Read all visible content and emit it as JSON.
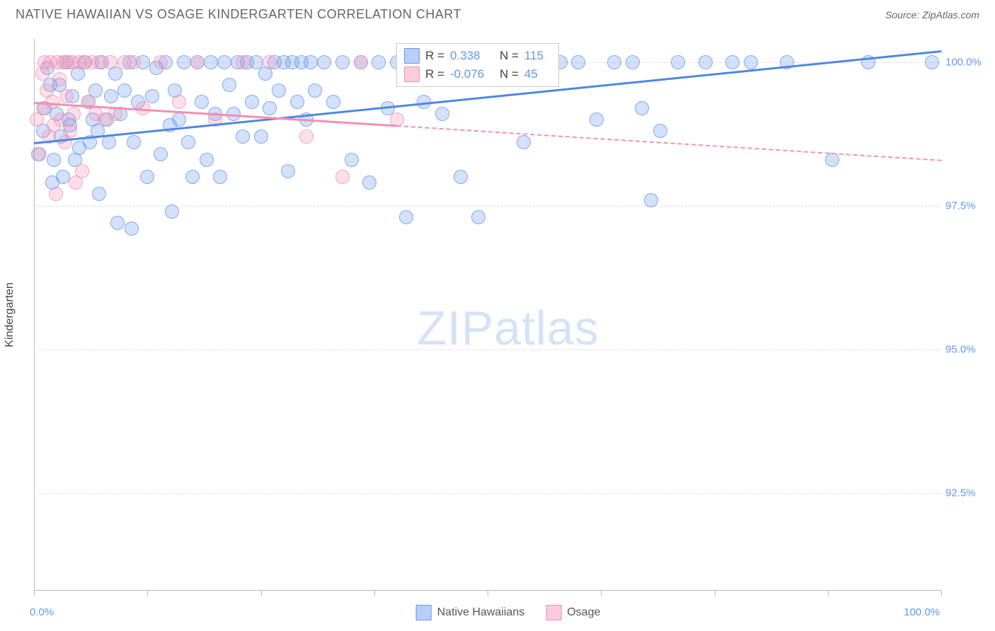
{
  "title": "NATIVE HAWAIIAN VS OSAGE KINDERGARTEN CORRELATION CHART",
  "source": "Source: ZipAtlas.com",
  "watermark": {
    "zip": "ZIP",
    "atlas": "atlas"
  },
  "chart": {
    "type": "scatter",
    "background_color": "#ffffff",
    "grid_color": "#dddddd",
    "axis_color": "#bbbbbb",
    "value_color": "#6495ed",
    "text_color": "#444444",
    "xlim": [
      0,
      100
    ],
    "ylim": [
      90.8,
      100.4
    ],
    "y_axis_title": "Kindergarten",
    "y_ticks": [
      92.5,
      95.0,
      97.5,
      100.0
    ],
    "y_tick_labels": [
      "92.5%",
      "95.0%",
      "97.5%",
      "100.0%"
    ],
    "x_ticks": [
      0,
      12.5,
      25,
      37.5,
      50,
      62.5,
      75,
      87.5,
      100
    ],
    "x_axis_left_label": "0.0%",
    "x_axis_right_label": "100.0%",
    "point_radius": 10,
    "series": [
      {
        "name": "Native Hawaiians",
        "color": "#6495ed",
        "fill": "rgba(100,149,237,0.28)",
        "points": [
          [
            0.5,
            98.4
          ],
          [
            1.0,
            98.8
          ],
          [
            1.2,
            99.2
          ],
          [
            1.5,
            99.9
          ],
          [
            1.8,
            99.6
          ],
          [
            2.0,
            97.9
          ],
          [
            2.2,
            98.3
          ],
          [
            2.5,
            99.1
          ],
          [
            2.8,
            99.6
          ],
          [
            3.0,
            98.7
          ],
          [
            3.2,
            98.0
          ],
          [
            3.5,
            100.0
          ],
          [
            3.8,
            99.0
          ],
          [
            4.0,
            98.9
          ],
          [
            4.2,
            99.4
          ],
          [
            4.5,
            98.3
          ],
          [
            4.8,
            99.8
          ],
          [
            5.0,
            98.5
          ],
          [
            5.5,
            100.0
          ],
          [
            6.0,
            99.3
          ],
          [
            6.2,
            98.6
          ],
          [
            6.5,
            99.0
          ],
          [
            6.8,
            99.5
          ],
          [
            7.0,
            98.8
          ],
          [
            7.2,
            97.7
          ],
          [
            7.5,
            100.0
          ],
          [
            8.0,
            99.0
          ],
          [
            8.3,
            98.6
          ],
          [
            8.5,
            99.4
          ],
          [
            9.0,
            99.8
          ],
          [
            9.2,
            97.2
          ],
          [
            9.5,
            99.1
          ],
          [
            10.0,
            99.5
          ],
          [
            10.5,
            100.0
          ],
          [
            10.8,
            97.1
          ],
          [
            11.0,
            98.6
          ],
          [
            11.5,
            99.3
          ],
          [
            12.0,
            100.0
          ],
          [
            12.5,
            98.0
          ],
          [
            13.0,
            99.4
          ],
          [
            13.5,
            99.9
          ],
          [
            14.0,
            98.4
          ],
          [
            14.5,
            100.0
          ],
          [
            15.0,
            98.9
          ],
          [
            15.2,
            97.4
          ],
          [
            15.5,
            99.5
          ],
          [
            16.0,
            99.0
          ],
          [
            16.5,
            100.0
          ],
          [
            17.0,
            98.6
          ],
          [
            17.5,
            98.0
          ],
          [
            18.0,
            100.0
          ],
          [
            18.5,
            99.3
          ],
          [
            19.0,
            98.3
          ],
          [
            19.5,
            100.0
          ],
          [
            20.0,
            99.1
          ],
          [
            20.5,
            98.0
          ],
          [
            21.0,
            100.0
          ],
          [
            21.5,
            99.6
          ],
          [
            22.0,
            99.1
          ],
          [
            22.5,
            100.0
          ],
          [
            23.0,
            98.7
          ],
          [
            23.5,
            100.0
          ],
          [
            24.0,
            99.3
          ],
          [
            24.5,
            100.0
          ],
          [
            25.0,
            98.7
          ],
          [
            25.5,
            99.8
          ],
          [
            26.0,
            99.2
          ],
          [
            26.5,
            100.0
          ],
          [
            27.0,
            99.5
          ],
          [
            27.5,
            100.0
          ],
          [
            28.0,
            98.1
          ],
          [
            28.5,
            100.0
          ],
          [
            29.0,
            99.3
          ],
          [
            29.5,
            100.0
          ],
          [
            30.0,
            99.0
          ],
          [
            30.5,
            100.0
          ],
          [
            31.0,
            99.5
          ],
          [
            32.0,
            100.0
          ],
          [
            33.0,
            99.3
          ],
          [
            34.0,
            100.0
          ],
          [
            35.0,
            98.3
          ],
          [
            36.0,
            100.0
          ],
          [
            37.0,
            97.9
          ],
          [
            38.0,
            100.0
          ],
          [
            39.0,
            99.2
          ],
          [
            40.0,
            100.0
          ],
          [
            41.0,
            97.3
          ],
          [
            42.0,
            100.0
          ],
          [
            43.0,
            99.3
          ],
          [
            44.0,
            100.0
          ],
          [
            45.0,
            99.1
          ],
          [
            46.0,
            100.0
          ],
          [
            47.0,
            98.0
          ],
          [
            48.0,
            100.0
          ],
          [
            49.0,
            97.3
          ],
          [
            50.0,
            100.0
          ],
          [
            52.0,
            100.0
          ],
          [
            54.0,
            98.6
          ],
          [
            56.0,
            100.0
          ],
          [
            58.0,
            100.0
          ],
          [
            60.0,
            100.0
          ],
          [
            62.0,
            99.0
          ],
          [
            64.0,
            100.0
          ],
          [
            66.0,
            100.0
          ],
          [
            67.0,
            99.2
          ],
          [
            68.0,
            97.6
          ],
          [
            69.0,
            98.8
          ],
          [
            71.0,
            100.0
          ],
          [
            74.0,
            100.0
          ],
          [
            77.0,
            100.0
          ],
          [
            79.0,
            100.0
          ],
          [
            83.0,
            100.0
          ],
          [
            88.0,
            98.3
          ],
          [
            92.0,
            100.0
          ],
          [
            99.0,
            100.0
          ]
        ],
        "trend": {
          "x1": 0,
          "y1": 98.6,
          "x2": 100,
          "y2": 100.2,
          "solid_until_x": 100
        },
        "stats": {
          "r": "0.338",
          "n": "115"
        }
      },
      {
        "name": "Osage",
        "color": "#f48fb1",
        "fill": "rgba(244,143,177,0.28)",
        "points": [
          [
            0.3,
            99.0
          ],
          [
            0.6,
            98.4
          ],
          [
            0.9,
            99.8
          ],
          [
            1.0,
            99.2
          ],
          [
            1.2,
            100.0
          ],
          [
            1.4,
            99.5
          ],
          [
            1.6,
            98.7
          ],
          [
            1.8,
            100.0
          ],
          [
            2.0,
            99.3
          ],
          [
            2.2,
            98.9
          ],
          [
            2.4,
            97.7
          ],
          [
            2.6,
            100.0
          ],
          [
            2.8,
            99.7
          ],
          [
            3.0,
            99.0
          ],
          [
            3.2,
            100.0
          ],
          [
            3.4,
            98.6
          ],
          [
            3.6,
            99.4
          ],
          [
            3.8,
            100.0
          ],
          [
            4.0,
            98.8
          ],
          [
            4.2,
            100.0
          ],
          [
            4.4,
            99.1
          ],
          [
            4.6,
            97.9
          ],
          [
            5.0,
            100.0
          ],
          [
            5.3,
            98.1
          ],
          [
            5.6,
            100.0
          ],
          [
            6.0,
            99.3
          ],
          [
            6.4,
            100.0
          ],
          [
            6.8,
            99.1
          ],
          [
            7.2,
            100.0
          ],
          [
            7.8,
            99.0
          ],
          [
            8.4,
            100.0
          ],
          [
            9.0,
            99.1
          ],
          [
            10.0,
            100.0
          ],
          [
            11.0,
            100.0
          ],
          [
            12.0,
            99.2
          ],
          [
            14.0,
            100.0
          ],
          [
            16.0,
            99.3
          ],
          [
            18.0,
            100.0
          ],
          [
            20.0,
            99.0
          ],
          [
            23.0,
            100.0
          ],
          [
            26.0,
            100.0
          ],
          [
            30.0,
            98.7
          ],
          [
            34.0,
            98.0
          ],
          [
            36.0,
            100.0
          ],
          [
            40.0,
            99.0
          ]
        ],
        "trend": {
          "x1": 0,
          "y1": 99.3,
          "x2": 100,
          "y2": 98.3,
          "solid_until_x": 40
        },
        "stats": {
          "r": "-0.076",
          "n": "45"
        }
      }
    ],
    "stat_box_labels": {
      "r": "R =",
      "n": "N ="
    },
    "legend": {
      "items": [
        "Native Hawaiians",
        "Osage"
      ]
    }
  }
}
